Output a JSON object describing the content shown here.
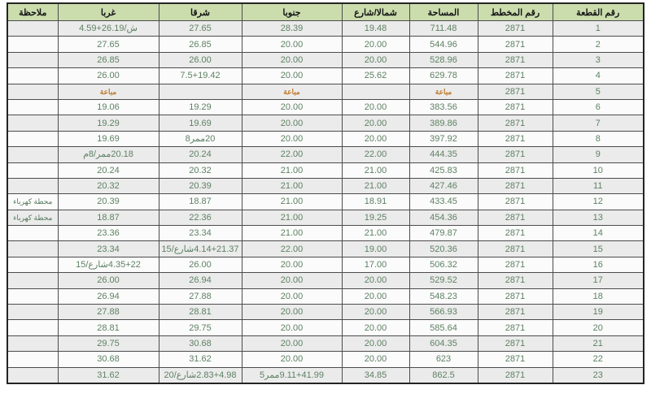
{
  "page": {
    "background": "#ffffff"
  },
  "table": {
    "headers": [
      "رقم القطعة",
      "رقم المخطط",
      "المساحة",
      "شمالا/شارع",
      "جنوبا",
      "شرقا",
      "غربا",
      "ملاحظة"
    ],
    "column_keys": [
      "plot-number",
      "plan-number",
      "area",
      "north-street",
      "south",
      "east",
      "west",
      "note"
    ],
    "style": {
      "header_bg": "#cbdcad",
      "row_odd_bg": "#ebebeb",
      "row_even_bg": "#fbfbfb",
      "data_text_color": "#5e8163",
      "sold_bg": "#ffff00",
      "sold_text_color": "#c07a2e",
      "border_color": "#4c4c4c"
    },
    "sold_label": "مباعة",
    "rows": [
      {
        "cells": [
          "1",
          "2871",
          "711.48",
          "19.48",
          "28.39",
          "27.65",
          "ش/26.19+4.59",
          ""
        ],
        "highlight": []
      },
      {
        "cells": [
          "2",
          "2871",
          "544.96",
          "20.00",
          "20.00",
          "26.85",
          "27.65",
          ""
        ],
        "highlight": []
      },
      {
        "cells": [
          "3",
          "2871",
          "528.96",
          "20.00",
          "20.00",
          "26.00",
          "26.85",
          ""
        ],
        "highlight": []
      },
      {
        "cells": [
          "4",
          "2871",
          "629.78",
          "25.62",
          "20.00",
          "7.5+19.42",
          "26.00",
          ""
        ],
        "highlight": []
      },
      {
        "cells": [
          "5",
          "2871",
          "مباعة",
          "",
          "مباعة",
          "",
          "مباعة",
          ""
        ],
        "highlight": [
          2,
          4,
          6
        ]
      },
      {
        "cells": [
          "6",
          "2871",
          "383.56",
          "20.00",
          "20.00",
          "19.29",
          "19.06",
          ""
        ],
        "highlight": []
      },
      {
        "cells": [
          "7",
          "2871",
          "389.86",
          "20.00",
          "20.00",
          "19.69",
          "19.29",
          ""
        ],
        "highlight": []
      },
      {
        "cells": [
          "8",
          "2871",
          "397.92",
          "20.00",
          "20.00",
          "20ممر8",
          "19.69",
          ""
        ],
        "highlight": []
      },
      {
        "cells": [
          "9",
          "2871",
          "444.35",
          "22.00",
          "22.00",
          "20.24",
          "20.18ممر/8م",
          ""
        ],
        "highlight": []
      },
      {
        "cells": [
          "10",
          "2871",
          "425.83",
          "21.00",
          "21.00",
          "20.32",
          "20.24",
          ""
        ],
        "highlight": []
      },
      {
        "cells": [
          "11",
          "2871",
          "427.46",
          "21.00",
          "21.00",
          "20.39",
          "20.32",
          ""
        ],
        "highlight": []
      },
      {
        "cells": [
          "12",
          "2871",
          "433.45",
          "18.91",
          "21.00",
          "18.87",
          "20.39",
          "محطة كهرباء"
        ],
        "highlight": []
      },
      {
        "cells": [
          "13",
          "2871",
          "454.36",
          "19.25",
          "21.00",
          "22.36",
          "18.87",
          "محطة كهرباء"
        ],
        "highlight": []
      },
      {
        "cells": [
          "14",
          "2871",
          "479.87",
          "21.00",
          "21.00",
          "23.34",
          "23.36",
          ""
        ],
        "highlight": []
      },
      {
        "cells": [
          "15",
          "2871",
          "520.36",
          "19.00",
          "22.00",
          "4.14+21.37شارع/15",
          "23.34",
          ""
        ],
        "highlight": []
      },
      {
        "cells": [
          "16",
          "2871",
          "506.32",
          "17.00",
          "20.00",
          "26.00",
          "4.35+22شارع/15",
          ""
        ],
        "highlight": []
      },
      {
        "cells": [
          "17",
          "2871",
          "529.52",
          "20.00",
          "20.00",
          "26.94",
          "26.00",
          ""
        ],
        "highlight": []
      },
      {
        "cells": [
          "18",
          "2871",
          "548.23",
          "20.00",
          "20.00",
          "27.88",
          "26.94",
          ""
        ],
        "highlight": []
      },
      {
        "cells": [
          "19",
          "2871",
          "566.93",
          "20.00",
          "20.00",
          "28.81",
          "27.88",
          ""
        ],
        "highlight": []
      },
      {
        "cells": [
          "20",
          "2871",
          "585.64",
          "20.00",
          "20.00",
          "29.75",
          "28.81",
          ""
        ],
        "highlight": []
      },
      {
        "cells": [
          "21",
          "2871",
          "604.35",
          "20.00",
          "20.00",
          "30.68",
          "29.75",
          ""
        ],
        "highlight": []
      },
      {
        "cells": [
          "22",
          "2871",
          "623",
          "20.00",
          "20.00",
          "31.62",
          "30.68",
          ""
        ],
        "highlight": []
      },
      {
        "cells": [
          "23",
          "2871",
          "862.5",
          "34.85",
          "9.11+41.99ممر5",
          "2.83+4.98شارع/20",
          "31.62",
          ""
        ],
        "highlight": []
      }
    ]
  }
}
